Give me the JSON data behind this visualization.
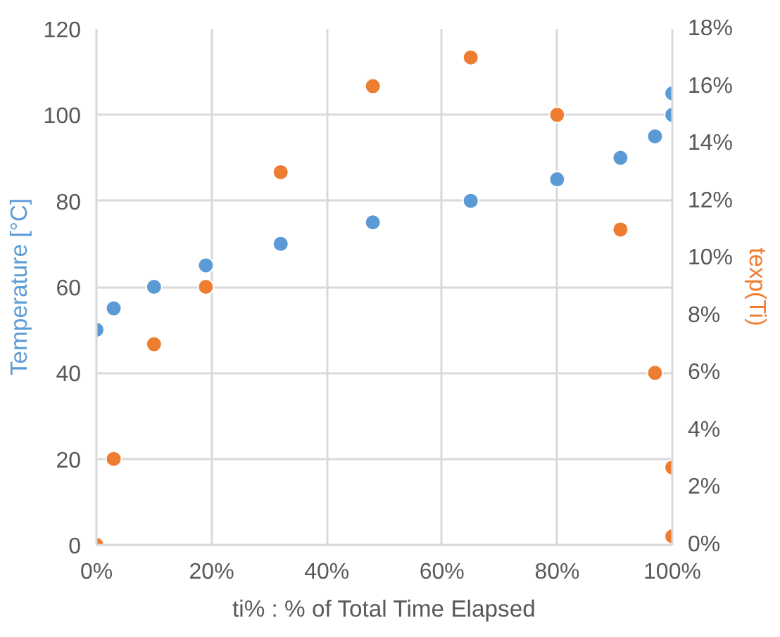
{
  "chart_data": {
    "type": "scatter",
    "xlabel": "ti% : % of Total Time Elapsed",
    "ylabel": "Temperature [°C]",
    "y2label": "texp(Ti)",
    "xlim": [
      0,
      100
    ],
    "xticks": [
      {
        "value": 0,
        "label": "0%"
      },
      {
        "value": 20,
        "label": "20%"
      },
      {
        "value": 40,
        "label": "40%"
      },
      {
        "value": 60,
        "label": "60%"
      },
      {
        "value": 80,
        "label": "80%"
      },
      {
        "value": 100,
        "label": "100%"
      }
    ],
    "ylim": [
      0,
      120
    ],
    "yticks": [
      0,
      20,
      40,
      60,
      80,
      100,
      120
    ],
    "y2lim": [
      0,
      18
    ],
    "y2ticks": [
      {
        "value": 0,
        "label": "0%"
      },
      {
        "value": 2,
        "label": "2%"
      },
      {
        "value": 4,
        "label": "4%"
      },
      {
        "value": 6,
        "label": "6%"
      },
      {
        "value": 8,
        "label": "8%"
      },
      {
        "value": 10,
        "label": "10%"
      },
      {
        "value": 12,
        "label": "12%"
      },
      {
        "value": 14,
        "label": "14%"
      },
      {
        "value": 16,
        "label": "16%"
      },
      {
        "value": 18,
        "label": "18%"
      }
    ],
    "grid": true,
    "marker": "circle",
    "series": [
      {
        "color": "#5b9bd5",
        "x": [
          0,
          3,
          10,
          19,
          32,
          48,
          65,
          80,
          91,
          97,
          100,
          100
        ],
        "values": [
          50,
          55,
          60,
          65,
          70,
          75,
          80,
          85,
          90,
          95,
          100,
          105
        ]
      },
      {
        "color": "#ed7d31",
        "axis": "y2",
        "x": [
          0,
          3,
          10,
          19,
          32,
          48,
          65,
          80,
          91,
          97,
          100,
          100
        ],
        "values": [
          0,
          3,
          7,
          9,
          13,
          16,
          17,
          15,
          11,
          6,
          2.7,
          0.3
        ]
      }
    ]
  }
}
